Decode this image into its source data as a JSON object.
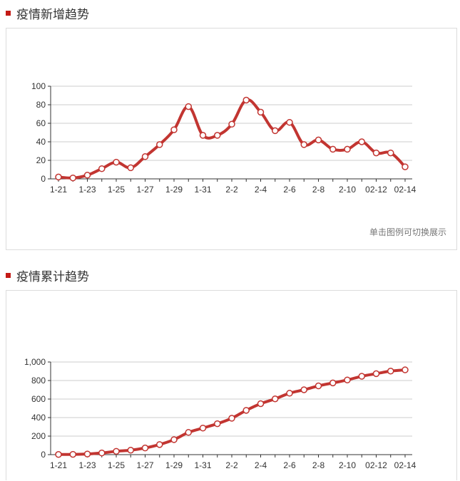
{
  "sections": {
    "new": {
      "title": "疫情新增趋势",
      "hint": "单击图例可切换展示"
    },
    "cumulative": {
      "title": "疫情累计趋势"
    }
  },
  "colors": {
    "line": "#c23531",
    "marker_fill": "#ffffff",
    "title_marker": "#c41a16",
    "grid": "#cccccc"
  },
  "chart_data": [
    {
      "type": "line",
      "title": "疫情新增趋势",
      "x": [
        "1-21",
        "1-22",
        "1-23",
        "1-24",
        "1-25",
        "1-26",
        "1-27",
        "1-28",
        "1-29",
        "1-30",
        "1-31",
        "2-1",
        "2-2",
        "2-3",
        "2-4",
        "2-5",
        "2-6",
        "2-7",
        "2-8",
        "2-9",
        "2-10",
        "02-11",
        "02-12",
        "02-13",
        "02-14"
      ],
      "x_tick_labels": [
        "1-21",
        "1-23",
        "1-25",
        "1-27",
        "1-29",
        "1-31",
        "2-2",
        "2-4",
        "2-6",
        "2-8",
        "2-10",
        "02-12",
        "02-14"
      ],
      "y_ticks": [
        "0",
        "20",
        "40",
        "60",
        "80",
        "100"
      ],
      "ylim": [
        0,
        100
      ],
      "grid": true,
      "series": [
        {
          "values": [
            2,
            1,
            4,
            11,
            18,
            12,
            24,
            37,
            53,
            78,
            47,
            47,
            59,
            85,
            72,
            52,
            61,
            37,
            42,
            32,
            32,
            40,
            28,
            28,
            13
          ]
        }
      ]
    },
    {
      "type": "line",
      "title": "疫情累计趋势",
      "x": [
        "1-21",
        "1-22",
        "1-23",
        "1-24",
        "1-25",
        "1-26",
        "1-27",
        "1-28",
        "1-29",
        "1-30",
        "1-31",
        "2-1",
        "2-2",
        "2-3",
        "2-4",
        "2-5",
        "2-6",
        "2-7",
        "2-8",
        "2-9",
        "2-10",
        "02-11",
        "02-12",
        "02-13",
        "02-14"
      ],
      "x_tick_labels": [
        "1-21",
        "1-23",
        "1-25",
        "1-27",
        "1-29",
        "1-31",
        "2-2",
        "2-4",
        "2-6",
        "2-8",
        "2-10",
        "02-12",
        "02-14"
      ],
      "y_ticks": [
        "0",
        "200",
        "400",
        "600",
        "800",
        "1,000"
      ],
      "ylim": [
        0,
        1000
      ],
      "grid": true,
      "series": [
        {
          "values": [
            2,
            3,
            7,
            18,
            36,
            48,
            72,
            109,
            162,
            240,
            287,
            334,
            393,
            478,
            550,
            602,
            663,
            700,
            742,
            774,
            806,
            846,
            874,
            902,
            915
          ]
        }
      ]
    }
  ]
}
